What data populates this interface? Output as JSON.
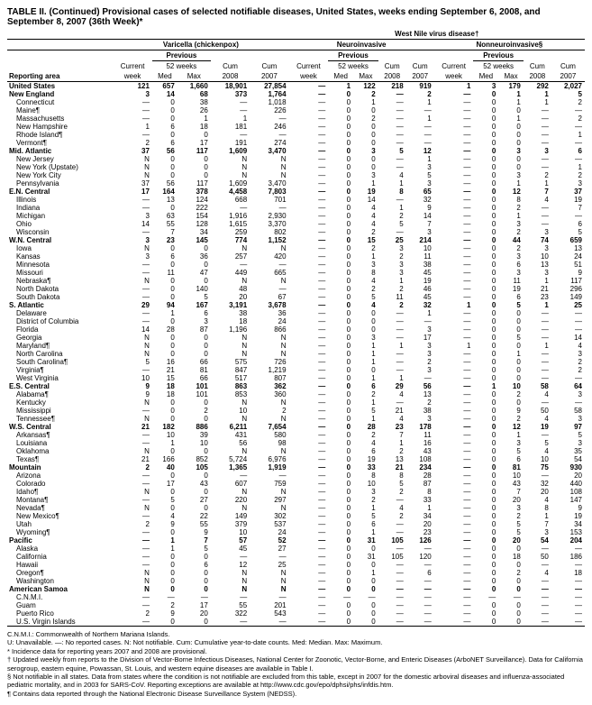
{
  "title": "TABLE II. (Continued) Provisional cases of selected notifiable diseases, United States, weeks ending September 6, 2008, and September 8, 2007 (36th Week)*",
  "virus_header": "West Nile virus disease†",
  "diseases": [
    "Varicella (chickenpox)",
    "Neuroinvasive",
    "Nonneuroinvasive§"
  ],
  "col_groups": [
    "Previous",
    "Previous",
    "Previous"
  ],
  "sub1": [
    "Current",
    "52 weeks",
    "Cum",
    "Cum",
    "Current",
    "52 weeks",
    "Cum",
    "Cum",
    "Current",
    "52 weeks",
    "Cum",
    "Cum"
  ],
  "sub2": [
    "Reporting area",
    "week",
    "Med",
    "Max",
    "2008",
    "2007",
    "week",
    "Med",
    "Max",
    "2008",
    "2007",
    "week",
    "Med",
    "Max",
    "2008",
    "2007"
  ],
  "rows": [
    {
      "b": 1,
      "a": "United States",
      "v": [
        "121",
        "657",
        "1,660",
        "18,901",
        "27,854",
        "—",
        "1",
        "122",
        "218",
        "919",
        "1",
        "3",
        "179",
        "292",
        "2,027"
      ]
    },
    {
      "b": 1,
      "a": "New England",
      "v": [
        "3",
        "14",
        "68",
        "373",
        "1,764",
        "—",
        "0",
        "2",
        "—",
        "2",
        "—",
        "0",
        "1",
        "1",
        "5"
      ]
    },
    {
      "a": "Connecticut",
      "v": [
        "—",
        "0",
        "38",
        "—",
        "1,018",
        "—",
        "0",
        "1",
        "—",
        "1",
        "—",
        "0",
        "1",
        "1",
        "2"
      ]
    },
    {
      "a": "Maine¶",
      "v": [
        "—",
        "0",
        "26",
        "—",
        "226",
        "—",
        "0",
        "0",
        "—",
        "—",
        "—",
        "0",
        "0",
        "—",
        "—"
      ]
    },
    {
      "a": "Massachusetts",
      "v": [
        "—",
        "0",
        "1",
        "1",
        "—",
        "—",
        "0",
        "2",
        "—",
        "1",
        "—",
        "0",
        "1",
        "—",
        "2"
      ]
    },
    {
      "a": "New Hampshire",
      "v": [
        "1",
        "6",
        "18",
        "181",
        "246",
        "—",
        "0",
        "0",
        "—",
        "—",
        "—",
        "0",
        "0",
        "—",
        "—"
      ]
    },
    {
      "a": "Rhode Island¶",
      "v": [
        "—",
        "0",
        "0",
        "—",
        "—",
        "—",
        "0",
        "0",
        "—",
        "—",
        "—",
        "0",
        "0",
        "—",
        "1"
      ]
    },
    {
      "a": "Vermont¶",
      "v": [
        "2",
        "6",
        "17",
        "191",
        "274",
        "—",
        "0",
        "0",
        "—",
        "—",
        "—",
        "0",
        "0",
        "—",
        "—"
      ]
    },
    {
      "b": 1,
      "a": "Mid. Atlantic",
      "v": [
        "37",
        "56",
        "117",
        "1,609",
        "3,470",
        "—",
        "0",
        "3",
        "5",
        "12",
        "—",
        "0",
        "3",
        "3",
        "6"
      ]
    },
    {
      "a": "New Jersey",
      "v": [
        "N",
        "0",
        "0",
        "N",
        "N",
        "—",
        "0",
        "0",
        "—",
        "1",
        "—",
        "0",
        "0",
        "—",
        "—"
      ]
    },
    {
      "a": "New York (Upstate)",
      "v": [
        "N",
        "0",
        "0",
        "N",
        "N",
        "—",
        "0",
        "0",
        "—",
        "3",
        "—",
        "0",
        "0",
        "—",
        "1"
      ]
    },
    {
      "a": "New York City",
      "v": [
        "N",
        "0",
        "0",
        "N",
        "N",
        "—",
        "0",
        "3",
        "4",
        "5",
        "—",
        "0",
        "3",
        "2",
        "2"
      ]
    },
    {
      "a": "Pennsylvania",
      "v": [
        "37",
        "56",
        "117",
        "1,609",
        "3,470",
        "—",
        "0",
        "1",
        "1",
        "3",
        "—",
        "0",
        "1",
        "1",
        "3"
      ]
    },
    {
      "b": 1,
      "a": "E.N. Central",
      "v": [
        "17",
        "164",
        "378",
        "4,458",
        "7,803",
        "—",
        "0",
        "19",
        "8",
        "65",
        "—",
        "0",
        "12",
        "7",
        "37"
      ]
    },
    {
      "a": "Illinois",
      "v": [
        "—",
        "13",
        "124",
        "668",
        "701",
        "—",
        "0",
        "14",
        "—",
        "32",
        "—",
        "0",
        "8",
        "4",
        "19"
      ]
    },
    {
      "a": "Indiana",
      "v": [
        "—",
        "0",
        "222",
        "—",
        "—",
        "—",
        "0",
        "4",
        "1",
        "9",
        "—",
        "0",
        "2",
        "—",
        "7"
      ]
    },
    {
      "a": "Michigan",
      "v": [
        "3",
        "63",
        "154",
        "1,916",
        "2,930",
        "—",
        "0",
        "4",
        "2",
        "14",
        "—",
        "0",
        "1",
        "—",
        "—"
      ]
    },
    {
      "a": "Ohio",
      "v": [
        "14",
        "55",
        "128",
        "1,615",
        "3,370",
        "—",
        "0",
        "4",
        "5",
        "7",
        "—",
        "0",
        "3",
        "—",
        "6"
      ]
    },
    {
      "a": "Wisconsin",
      "v": [
        "—",
        "7",
        "34",
        "259",
        "802",
        "—",
        "0",
        "2",
        "—",
        "3",
        "—",
        "0",
        "2",
        "3",
        "5"
      ]
    },
    {
      "b": 1,
      "a": "W.N. Central",
      "v": [
        "3",
        "23",
        "145",
        "774",
        "1,152",
        "—",
        "0",
        "15",
        "25",
        "214",
        "—",
        "0",
        "44",
        "74",
        "659"
      ]
    },
    {
      "a": "Iowa",
      "v": [
        "N",
        "0",
        "0",
        "N",
        "N",
        "—",
        "0",
        "2",
        "3",
        "10",
        "—",
        "0",
        "2",
        "3",
        "13"
      ]
    },
    {
      "a": "Kansas",
      "v": [
        "3",
        "6",
        "36",
        "257",
        "420",
        "—",
        "0",
        "1",
        "2",
        "11",
        "—",
        "0",
        "3",
        "10",
        "24"
      ]
    },
    {
      "a": "Minnesota",
      "v": [
        "—",
        "0",
        "0",
        "—",
        "—",
        "—",
        "0",
        "3",
        "3",
        "38",
        "—",
        "0",
        "6",
        "13",
        "51"
      ]
    },
    {
      "a": "Missouri",
      "v": [
        "—",
        "11",
        "47",
        "449",
        "665",
        "—",
        "0",
        "8",
        "3",
        "45",
        "—",
        "0",
        "3",
        "3",
        "9"
      ]
    },
    {
      "a": "Nebraska¶",
      "v": [
        "N",
        "0",
        "0",
        "N",
        "N",
        "—",
        "0",
        "4",
        "1",
        "19",
        "—",
        "0",
        "11",
        "1",
        "117"
      ]
    },
    {
      "a": "North Dakota",
      "v": [
        "—",
        "0",
        "140",
        "48",
        "—",
        "—",
        "0",
        "2",
        "2",
        "46",
        "—",
        "0",
        "19",
        "21",
        "296"
      ]
    },
    {
      "a": "South Dakota",
      "v": [
        "—",
        "0",
        "5",
        "20",
        "67",
        "—",
        "0",
        "5",
        "11",
        "45",
        "—",
        "0",
        "6",
        "23",
        "149"
      ]
    },
    {
      "b": 1,
      "a": "S. Atlantic",
      "v": [
        "29",
        "94",
        "167",
        "3,191",
        "3,678",
        "—",
        "0",
        "4",
        "2",
        "32",
        "1",
        "0",
        "5",
        "1",
        "25"
      ]
    },
    {
      "a": "Delaware",
      "v": [
        "—",
        "1",
        "6",
        "38",
        "36",
        "—",
        "0",
        "0",
        "—",
        "1",
        "—",
        "0",
        "0",
        "—",
        "—"
      ]
    },
    {
      "a": "District of Columbia",
      "v": [
        "—",
        "0",
        "3",
        "18",
        "24",
        "—",
        "0",
        "0",
        "—",
        "—",
        "—",
        "0",
        "0",
        "—",
        "—"
      ]
    },
    {
      "a": "Florida",
      "v": [
        "14",
        "28",
        "87",
        "1,196",
        "866",
        "—",
        "0",
        "0",
        "—",
        "3",
        "—",
        "0",
        "0",
        "—",
        "—"
      ]
    },
    {
      "a": "Georgia",
      "v": [
        "N",
        "0",
        "0",
        "N",
        "N",
        "—",
        "0",
        "3",
        "—",
        "17",
        "—",
        "0",
        "5",
        "—",
        "14"
      ]
    },
    {
      "a": "Maryland¶",
      "v": [
        "N",
        "0",
        "0",
        "N",
        "N",
        "—",
        "0",
        "1",
        "1",
        "3",
        "1",
        "0",
        "0",
        "1",
        "4"
      ]
    },
    {
      "a": "North Carolina",
      "v": [
        "N",
        "0",
        "0",
        "N",
        "N",
        "—",
        "0",
        "1",
        "—",
        "3",
        "—",
        "0",
        "1",
        "—",
        "3"
      ]
    },
    {
      "a": "South Carolina¶",
      "v": [
        "5",
        "16",
        "66",
        "575",
        "726",
        "—",
        "0",
        "1",
        "—",
        "2",
        "—",
        "0",
        "0",
        "—",
        "2"
      ]
    },
    {
      "a": "Virginia¶",
      "v": [
        "—",
        "21",
        "81",
        "847",
        "1,219",
        "—",
        "0",
        "0",
        "—",
        "3",
        "—",
        "0",
        "0",
        "—",
        "2"
      ]
    },
    {
      "a": "West Virginia",
      "v": [
        "10",
        "15",
        "66",
        "517",
        "807",
        "—",
        "0",
        "1",
        "1",
        "—",
        "—",
        "0",
        "0",
        "—",
        "—"
      ]
    },
    {
      "b": 1,
      "a": "E.S. Central",
      "v": [
        "9",
        "18",
        "101",
        "863",
        "362",
        "—",
        "0",
        "6",
        "29",
        "56",
        "—",
        "1",
        "10",
        "58",
        "64"
      ]
    },
    {
      "a": "Alabama¶",
      "v": [
        "9",
        "18",
        "101",
        "853",
        "360",
        "—",
        "0",
        "2",
        "4",
        "13",
        "—",
        "0",
        "2",
        "4",
        "3"
      ]
    },
    {
      "a": "Kentucky",
      "v": [
        "N",
        "0",
        "0",
        "N",
        "N",
        "—",
        "0",
        "1",
        "—",
        "2",
        "—",
        "0",
        "0",
        "—",
        "—"
      ]
    },
    {
      "a": "Mississippi",
      "v": [
        "—",
        "0",
        "2",
        "10",
        "2",
        "—",
        "0",
        "5",
        "21",
        "38",
        "—",
        "0",
        "9",
        "50",
        "58"
      ]
    },
    {
      "a": "Tennessee¶",
      "v": [
        "N",
        "0",
        "0",
        "N",
        "N",
        "—",
        "0",
        "1",
        "4",
        "3",
        "—",
        "0",
        "2",
        "4",
        "3"
      ]
    },
    {
      "b": 1,
      "a": "W.S. Central",
      "v": [
        "21",
        "182",
        "886",
        "6,211",
        "7,654",
        "—",
        "0",
        "28",
        "23",
        "178",
        "—",
        "0",
        "12",
        "19",
        "97"
      ]
    },
    {
      "a": "Arkansas¶",
      "v": [
        "—",
        "10",
        "39",
        "431",
        "580",
        "—",
        "0",
        "2",
        "7",
        "11",
        "—",
        "0",
        "1",
        "—",
        "5"
      ]
    },
    {
      "a": "Louisiana",
      "v": [
        "—",
        "1",
        "10",
        "56",
        "98",
        "—",
        "0",
        "4",
        "1",
        "16",
        "—",
        "0",
        "3",
        "5",
        "3"
      ]
    },
    {
      "a": "Oklahoma",
      "v": [
        "N",
        "0",
        "0",
        "N",
        "N",
        "—",
        "0",
        "6",
        "2",
        "43",
        "—",
        "0",
        "5",
        "4",
        "35"
      ]
    },
    {
      "a": "Texas¶",
      "v": [
        "21",
        "166",
        "852",
        "5,724",
        "6,976",
        "—",
        "0",
        "19",
        "13",
        "108",
        "—",
        "0",
        "6",
        "10",
        "54"
      ]
    },
    {
      "b": 1,
      "a": "Mountain",
      "v": [
        "2",
        "40",
        "105",
        "1,365",
        "1,919",
        "—",
        "0",
        "33",
        "21",
        "234",
        "—",
        "0",
        "81",
        "75",
        "930"
      ]
    },
    {
      "a": "Arizona",
      "v": [
        "—",
        "0",
        "0",
        "—",
        "—",
        "—",
        "0",
        "8",
        "8",
        "28",
        "—",
        "0",
        "10",
        "—",
        "20"
      ]
    },
    {
      "a": "Colorado",
      "v": [
        "—",
        "17",
        "43",
        "607",
        "759",
        "—",
        "0",
        "10",
        "5",
        "87",
        "—",
        "0",
        "43",
        "32",
        "440"
      ]
    },
    {
      "a": "Idaho¶",
      "v": [
        "N",
        "0",
        "0",
        "N",
        "N",
        "—",
        "0",
        "3",
        "2",
        "8",
        "—",
        "0",
        "7",
        "20",
        "108"
      ]
    },
    {
      "a": "Montana¶",
      "v": [
        "—",
        "5",
        "27",
        "220",
        "297",
        "—",
        "0",
        "2",
        "—",
        "33",
        "—",
        "0",
        "20",
        "4",
        "147"
      ]
    },
    {
      "a": "Nevada¶",
      "v": [
        "N",
        "0",
        "0",
        "N",
        "N",
        "—",
        "0",
        "1",
        "4",
        "1",
        "—",
        "0",
        "3",
        "8",
        "9"
      ]
    },
    {
      "a": "New Mexico¶",
      "v": [
        "—",
        "4",
        "22",
        "149",
        "302",
        "—",
        "0",
        "5",
        "2",
        "34",
        "—",
        "0",
        "2",
        "1",
        "19"
      ]
    },
    {
      "a": "Utah",
      "v": [
        "2",
        "9",
        "55",
        "379",
        "537",
        "—",
        "0",
        "6",
        "—",
        "20",
        "—",
        "0",
        "5",
        "7",
        "34"
      ]
    },
    {
      "a": "Wyoming¶",
      "v": [
        "—",
        "0",
        "9",
        "10",
        "24",
        "—",
        "0",
        "1",
        "—",
        "23",
        "—",
        "0",
        "5",
        "3",
        "153"
      ]
    },
    {
      "b": 1,
      "a": "Pacific",
      "v": [
        "—",
        "1",
        "7",
        "57",
        "52",
        "—",
        "0",
        "31",
        "105",
        "126",
        "—",
        "0",
        "20",
        "54",
        "204"
      ]
    },
    {
      "a": "Alaska",
      "v": [
        "—",
        "1",
        "5",
        "45",
        "27",
        "—",
        "0",
        "0",
        "—",
        "—",
        "—",
        "0",
        "0",
        "—",
        "—"
      ]
    },
    {
      "a": "California",
      "v": [
        "—",
        "0",
        "0",
        "—",
        "—",
        "—",
        "0",
        "31",
        "105",
        "120",
        "—",
        "0",
        "18",
        "50",
        "186"
      ]
    },
    {
      "a": "Hawaii",
      "v": [
        "—",
        "0",
        "6",
        "12",
        "25",
        "—",
        "0",
        "0",
        "—",
        "—",
        "—",
        "0",
        "0",
        "—",
        "—"
      ]
    },
    {
      "a": "Oregon¶",
      "v": [
        "N",
        "0",
        "0",
        "N",
        "N",
        "—",
        "0",
        "1",
        "—",
        "6",
        "—",
        "0",
        "2",
        "4",
        "18"
      ]
    },
    {
      "a": "Washington",
      "v": [
        "N",
        "0",
        "0",
        "N",
        "N",
        "—",
        "0",
        "0",
        "—",
        "—",
        "—",
        "0",
        "0",
        "—",
        "—"
      ]
    },
    {
      "b": 1,
      "a": "American Samoa",
      "v": [
        "N",
        "0",
        "0",
        "N",
        "N",
        "—",
        "0",
        "0",
        "—",
        "—",
        "—",
        "0",
        "0",
        "—",
        "—"
      ]
    },
    {
      "a": "C.N.M.I.",
      "v": [
        "—",
        "—",
        "—",
        "—",
        "—",
        "—",
        "—",
        "—",
        "—",
        "—",
        "—",
        "—",
        "—",
        "—",
        "—"
      ]
    },
    {
      "a": "Guam",
      "v": [
        "—",
        "2",
        "17",
        "55",
        "201",
        "—",
        "0",
        "0",
        "—",
        "—",
        "—",
        "0",
        "0",
        "—",
        "—"
      ]
    },
    {
      "a": "Puerto Rico",
      "v": [
        "2",
        "9",
        "20",
        "322",
        "543",
        "—",
        "0",
        "0",
        "—",
        "—",
        "—",
        "0",
        "0",
        "—",
        "—"
      ]
    },
    {
      "a": "U.S. Virgin Islands",
      "v": [
        "—",
        "0",
        "0",
        "—",
        "—",
        "—",
        "0",
        "0",
        "—",
        "—",
        "—",
        "0",
        "0",
        "—",
        "—"
      ]
    }
  ],
  "footnotes": [
    "C.N.M.I.: Commonwealth of Northern Mariana Islands.",
    "U: Unavailable.   —: No reported cases.   N: Not notifiable.   Cum: Cumulative year-to-date counts.   Med: Median.   Max: Maximum.",
    "* Incidence data for reporting years 2007 and 2008 are provisional.",
    "† Updated weekly from reports to the Division of Vector-Borne Infectious Diseases, National Center for Zoonotic, Vector-Borne, and Enteric Diseases (ArboNET Surveillance). Data for California serogroup, eastern equine, Powassan, St. Louis, and western equine diseases are available in Table I.",
    "§ Not notifiable in all states. Data from states where the condition is not notifiable are excluded from this table, except in 2007 for the domestic arboviral diseases and influenza-associated pediatric mortality, and in 2003 for SARS-CoV. Reporting exceptions are available at http://www.cdc.gov/epo/dphsi/phs/infdis.htm.",
    "¶ Contains data reported through the National Electronic Disease Surveillance System (NEDSS)."
  ]
}
